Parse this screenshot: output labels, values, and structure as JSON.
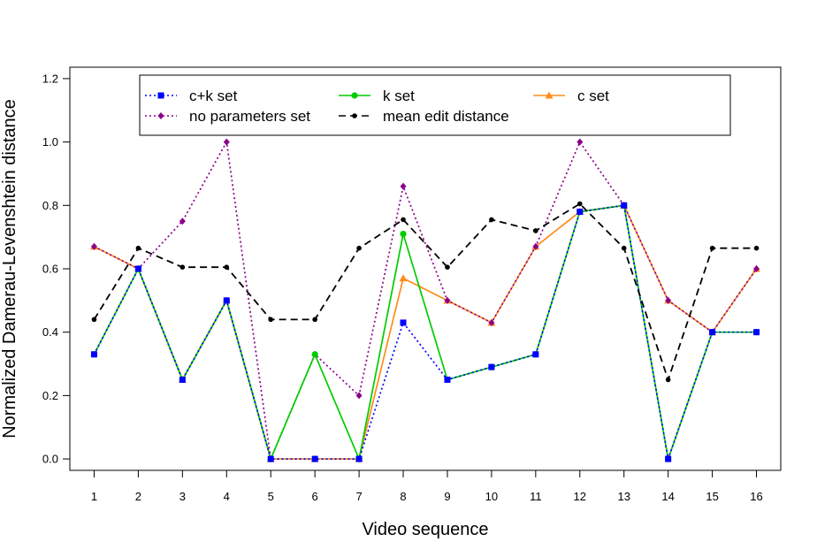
{
  "chart_data": {
    "type": "line",
    "title": "",
    "xlabel": "Video sequence",
    "ylabel": "Normalized Damerau-Levenshtein distance",
    "x": [
      1,
      2,
      3,
      4,
      5,
      6,
      7,
      8,
      9,
      10,
      11,
      12,
      13,
      14,
      15,
      16
    ],
    "xlim": [
      0.45,
      16.55
    ],
    "ylim": [
      -0.036,
      1.236
    ],
    "yticks": [
      "0.0",
      "0.2",
      "0.4",
      "0.6",
      "0.8",
      "1.0",
      "1.2"
    ],
    "grid": false,
    "legend_position": "top",
    "series": [
      {
        "name": "c+k set",
        "color": "#0000ff",
        "style": "dotted",
        "marker": "square",
        "values": [
          0.33,
          0.6,
          0.25,
          0.5,
          0.0,
          0.0,
          0.0,
          0.43,
          0.25,
          0.29,
          0.33,
          0.78,
          0.8,
          0.0,
          0.4,
          0.4
        ]
      },
      {
        "name": "k set",
        "color": "#00cc00",
        "style": "solid",
        "marker": "circle",
        "values": [
          0.33,
          0.6,
          0.25,
          0.5,
          0.0,
          0.33,
          0.0,
          0.71,
          0.25,
          0.29,
          0.33,
          0.78,
          0.8,
          0.0,
          0.4,
          0.4
        ]
      },
      {
        "name": "c set",
        "color": "#ff8c1a",
        "style": "solid",
        "marker": "triangle",
        "values": [
          0.67,
          0.6,
          0.25,
          0.5,
          0.0,
          0.0,
          0.0,
          0.57,
          0.5,
          0.43,
          0.67,
          0.78,
          0.8,
          0.5,
          0.4,
          0.6
        ]
      },
      {
        "name": "no parameters set",
        "color": "#8b008b",
        "style": "dotted",
        "marker": "diamond",
        "values": [
          0.67,
          0.6,
          0.75,
          1.0,
          0.0,
          0.33,
          0.2,
          0.86,
          0.5,
          0.43,
          0.67,
          1.0,
          0.8,
          0.5,
          0.4,
          0.6
        ]
      },
      {
        "name": "mean edit distance",
        "color": "#000000",
        "style": "dashed",
        "marker": "circle-small",
        "values": [
          0.44,
          0.665,
          0.605,
          0.605,
          0.44,
          0.44,
          0.665,
          0.755,
          0.605,
          0.755,
          0.72,
          0.805,
          0.665,
          0.25,
          0.665,
          0.665
        ]
      }
    ]
  }
}
